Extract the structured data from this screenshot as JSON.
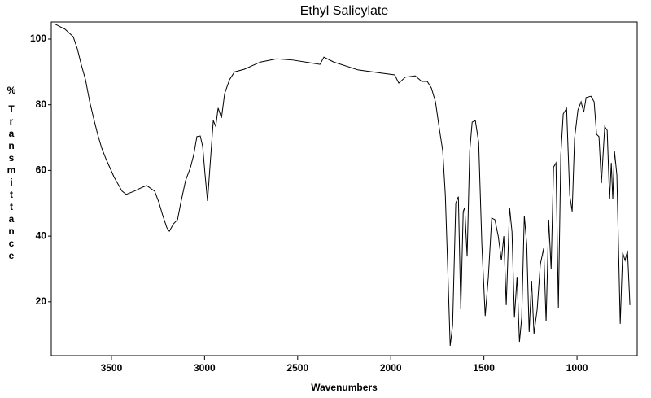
{
  "chart_data": {
    "type": "line",
    "title": "Ethyl Salicylate",
    "x_label": "Wavenumbers",
    "y_label": "% Transmittance",
    "xlim": [
      3823,
      677
    ],
    "ylim": [
      3.6,
      105.2
    ],
    "xticks": [
      3500,
      3000,
      2500,
      2000,
      1500,
      1000
    ],
    "yticks": [
      20,
      40,
      60,
      80,
      100
    ],
    "grid": false,
    "color": "#000000",
    "x": [
      3801,
      3749,
      3705,
      3683,
      3661,
      3639,
      3617,
      3596,
      3574,
      3552,
      3530,
      3486,
      3443,
      3421,
      3377,
      3333,
      3311,
      3268,
      3246,
      3224,
      3202,
      3189,
      3167,
      3145,
      3128,
      3102,
      3075,
      3058,
      3041,
      3023,
      3010,
      2997,
      2984,
      2971,
      2953,
      2940,
      2927,
      2909,
      2892,
      2866,
      2839,
      2787,
      2700,
      2612,
      2525,
      2437,
      2380,
      2359,
      2306,
      2175,
      2044,
      1979,
      1957,
      1922,
      1869,
      1834,
      1804,
      1782,
      1760,
      1738,
      1721,
      1707,
      1694,
      1681,
      1668,
      1651,
      1637,
      1624,
      1611,
      1603,
      1590,
      1576,
      1563,
      1546,
      1528,
      1511,
      1493,
      1476,
      1458,
      1441,
      1423,
      1406,
      1393,
      1380,
      1362,
      1349,
      1336,
      1322,
      1309,
      1297,
      1283,
      1270,
      1257,
      1244,
      1231,
      1214,
      1197,
      1179,
      1166,
      1152,
      1139,
      1126,
      1113,
      1100,
      1087,
      1074,
      1056,
      1039,
      1026,
      1013,
      995,
      978,
      964,
      951,
      925,
      908,
      895,
      882,
      869,
      851,
      838,
      825,
      816,
      808,
      799,
      786,
      768,
      755,
      742,
      729,
      716
    ],
    "values": [
      104.5,
      103,
      100.7,
      97,
      92,
      87.6,
      81,
      76,
      71,
      66.8,
      63.6,
      58,
      53.7,
      52.7,
      53.7,
      54.9,
      55.4,
      53.7,
      50.4,
      46.2,
      42.5,
      41.5,
      43.7,
      45,
      50,
      56.9,
      61,
      64.8,
      70.3,
      70.5,
      67.3,
      58.6,
      50.7,
      61,
      75.2,
      73.4,
      79,
      76,
      83.4,
      87.6,
      90,
      90.8,
      93,
      94,
      93.6,
      92.8,
      92.3,
      94.5,
      93,
      90.6,
      89.6,
      89.1,
      86.6,
      88.4,
      88.8,
      87.1,
      87.1,
      85.1,
      80.9,
      72.2,
      66,
      52.4,
      30,
      6.6,
      12.8,
      50,
      52,
      17.7,
      47.5,
      48.7,
      33.8,
      66,
      74.7,
      75.2,
      68.5,
      37.5,
      15.7,
      27.6,
      45.5,
      45,
      40,
      32.6,
      40,
      19,
      48.7,
      41.3,
      15.2,
      27.6,
      7.8,
      15.2,
      46.2,
      37.5,
      10.8,
      26.4,
      10.3,
      17.7,
      31.4,
      36.3,
      14,
      45,
      30,
      61,
      62.3,
      18.2,
      64.8,
      77.2,
      78.9,
      52.4,
      47.5,
      69.8,
      78.4,
      80.9,
      77.7,
      82.2,
      82.6,
      80.9,
      71,
      70.3,
      56.1,
      73.4,
      72.2,
      51.2,
      62.3,
      51.2,
      66,
      58.6,
      13.3,
      35,
      32.6,
      35.6,
      19
    ]
  }
}
